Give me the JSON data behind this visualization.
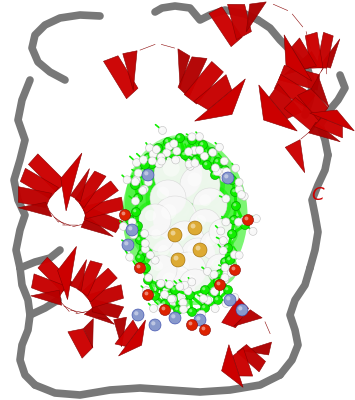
{
  "background_color": "#ffffff",
  "label_C": "C",
  "label_C_color": "#cc0000",
  "helix_color": "#cc0000",
  "helix_dark": "#880000",
  "loop_color": "#787878",
  "loop_lw": 5.5,
  "green_color": "#11ee00",
  "green_dark": "#009900",
  "white_color": "#f8f8f8",
  "blue_color": "#8899cc",
  "orange_color": "#ddaa33",
  "red_atom_color": "#dd2200",
  "figsize": [
    3.55,
    4.0
  ],
  "dpi": 100
}
